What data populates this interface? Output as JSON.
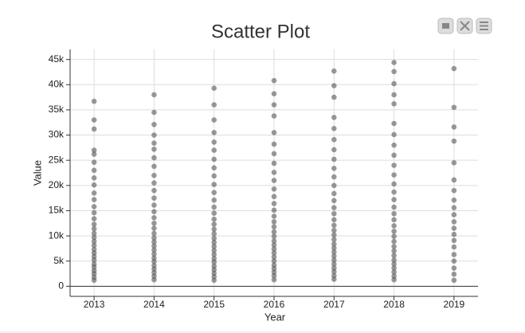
{
  "chart_data": {
    "type": "scatter",
    "title": "Scatter Plot",
    "x_label": "Year",
    "y_label": "Value",
    "x": [
      2013,
      2013,
      2013,
      2013,
      2013,
      2013,
      2013,
      2013,
      2013,
      2013,
      2013,
      2013,
      2013,
      2013,
      2013,
      2013,
      2013,
      2013,
      2013,
      2013,
      2013,
      2013,
      2013,
      2013,
      2013,
      2013,
      2013,
      2013,
      2013,
      2013,
      2014,
      2014,
      2014,
      2014,
      2014,
      2014,
      2014,
      2014,
      2014,
      2014,
      2014,
      2014,
      2014,
      2014,
      2014,
      2014,
      2014,
      2014,
      2014,
      2014,
      2014,
      2014,
      2014,
      2014,
      2014,
      2014,
      2014,
      2014,
      2014,
      2014,
      2015,
      2015,
      2015,
      2015,
      2015,
      2015,
      2015,
      2015,
      2015,
      2015,
      2015,
      2015,
      2015,
      2015,
      2015,
      2015,
      2015,
      2015,
      2015,
      2015,
      2015,
      2015,
      2015,
      2015,
      2015,
      2015,
      2015,
      2015,
      2015,
      2015,
      2016,
      2016,
      2016,
      2016,
      2016,
      2016,
      2016,
      2016,
      2016,
      2016,
      2016,
      2016,
      2016,
      2016,
      2016,
      2016,
      2016,
      2016,
      2016,
      2016,
      2016,
      2016,
      2016,
      2016,
      2016,
      2016,
      2016,
      2016,
      2016,
      2016,
      2017,
      2017,
      2017,
      2017,
      2017,
      2017,
      2017,
      2017,
      2017,
      2017,
      2017,
      2017,
      2017,
      2017,
      2017,
      2017,
      2017,
      2017,
      2017,
      2017,
      2017,
      2017,
      2017,
      2017,
      2017,
      2017,
      2017,
      2017,
      2017,
      2017,
      2018,
      2018,
      2018,
      2018,
      2018,
      2018,
      2018,
      2018,
      2018,
      2018,
      2018,
      2018,
      2018,
      2018,
      2018,
      2018,
      2018,
      2018,
      2018,
      2018,
      2018,
      2018,
      2018,
      2018,
      2018,
      2018,
      2018,
      2018,
      2018,
      2018,
      2019,
      2019,
      2019,
      2019,
      2019,
      2019,
      2019,
      2019,
      2019,
      2019,
      2019,
      2019,
      2019,
      2019,
      2019,
      2019,
      2019,
      2019,
      2019,
      2019
    ],
    "y": [
      1200,
      1800,
      2500,
      3100,
      3800,
      4400,
      5200,
      5900,
      6600,
      7300,
      8100,
      8900,
      9700,
      10500,
      11400,
      12300,
      13400,
      14600,
      15800,
      17200,
      18500,
      20100,
      21500,
      23000,
      24600,
      26200,
      27000,
      31200,
      33000,
      36700,
      1300,
      2000,
      2700,
      3400,
      4100,
      4900,
      5600,
      6400,
      7200,
      8000,
      8800,
      9600,
      10500,
      11500,
      12500,
      13600,
      14800,
      16100,
      17500,
      19000,
      20500,
      22000,
      23800,
      25500,
      27200,
      28400,
      30000,
      32100,
      34500,
      38000,
      1200,
      1900,
      2600,
      3300,
      4000,
      4800,
      5500,
      6300,
      7100,
      7900,
      8700,
      9500,
      10400,
      11300,
      12300,
      13300,
      14500,
      15700,
      17100,
      18600,
      20200,
      21900,
      23500,
      25200,
      27000,
      28600,
      30500,
      33000,
      36000,
      39300,
      1300,
      2100,
      2800,
      3500,
      4200,
      5000,
      5800,
      6600,
      7400,
      8200,
      9000,
      9900,
      10800,
      11800,
      12800,
      13900,
      15100,
      16400,
      17800,
      19300,
      21000,
      22600,
      24400,
      26300,
      28200,
      30500,
      33800,
      36000,
      38200,
      40800,
      1400,
      2100,
      2900,
      3600,
      4400,
      5200,
      6000,
      6800,
      7600,
      8400,
      9300,
      10200,
      11100,
      12100,
      13200,
      14400,
      15600,
      17000,
      18400,
      20000,
      21700,
      23400,
      25200,
      27100,
      29100,
      31300,
      33500,
      37500,
      39800,
      42700,
      1300,
      2000,
      2800,
      3600,
      4400,
      5200,
      6100,
      7000,
      7900,
      8900,
      9900,
      10900,
      12000,
      13200,
      14400,
      15700,
      17200,
      18700,
      20300,
      22100,
      24000,
      26000,
      28000,
      30100,
      32300,
      36200,
      38000,
      40200,
      42600,
      44400,
      1200,
      2400,
      3600,
      5000,
      6300,
      7800,
      9100,
      10300,
      11500,
      12800,
      14200,
      15600,
      17100,
      19000,
      21100,
      24500,
      28800,
      31600,
      35500,
      43200
    ],
    "color": "#555555",
    "xlim": [
      2012.6,
      2019.4
    ],
    "xticks": [
      2013,
      2014,
      2015,
      2016,
      2017,
      2018,
      2019
    ],
    "ylim": [
      -2000,
      47000
    ],
    "yticks": [
      0,
      {
        "value": 5000,
        "label": "5k"
      },
      {
        "value": 10000,
        "label": "10k"
      },
      {
        "value": 15000,
        "label": "15k"
      },
      {
        "value": 20000,
        "label": "20k"
      },
      {
        "value": 25000,
        "label": "25k"
      },
      {
        "value": 30000,
        "label": "30k"
      },
      {
        "value": 35000,
        "label": "35k"
      },
      {
        "value": 40000,
        "label": "40k"
      },
      {
        "value": 45000,
        "label": "45k"
      }
    ],
    "grid": true
  }
}
